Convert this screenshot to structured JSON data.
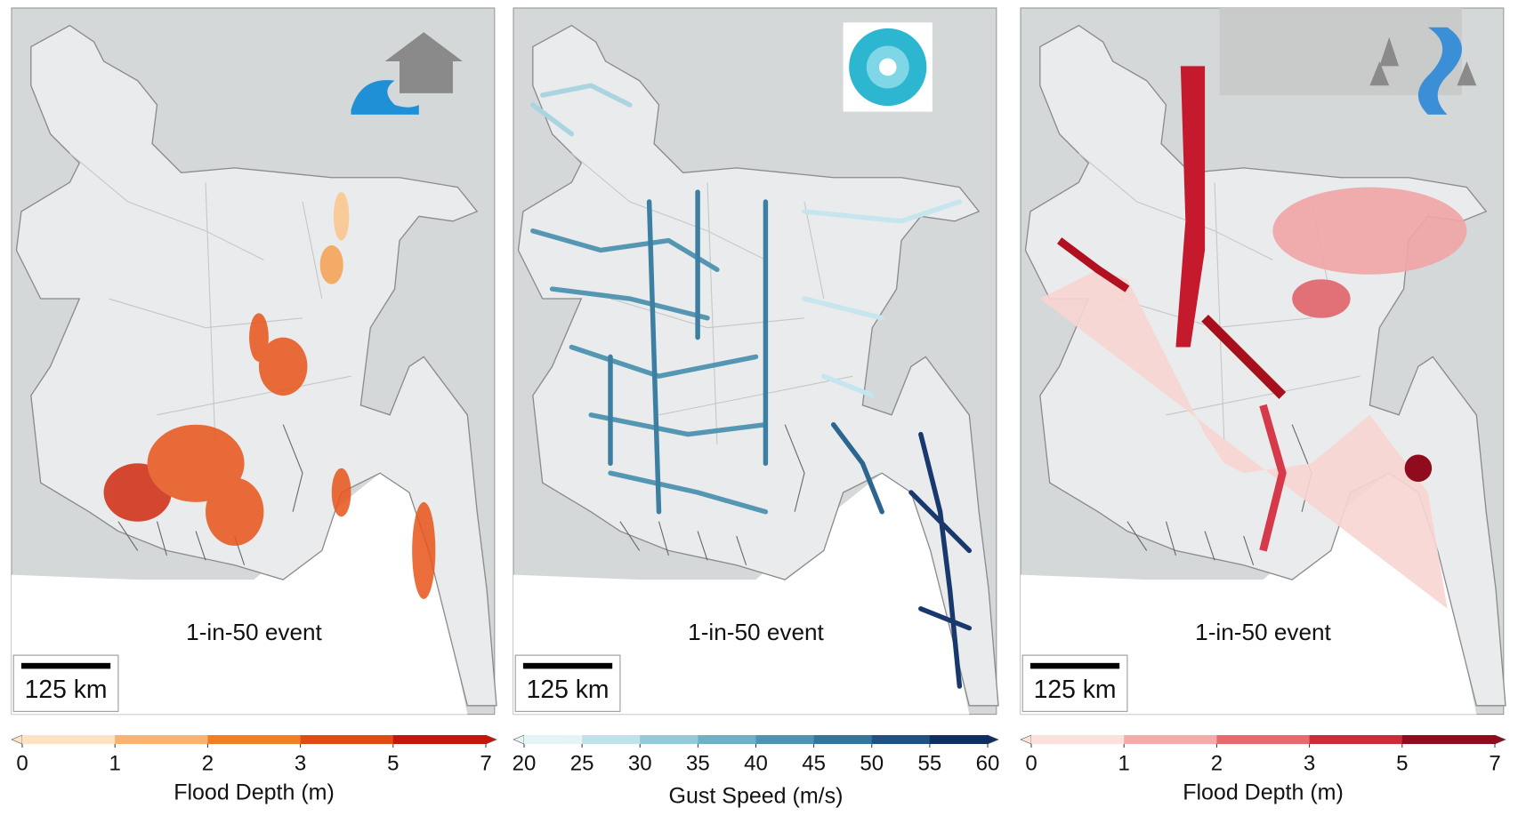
{
  "panels": [
    {
      "event": "1-in-50 event",
      "scale": "125 km",
      "colorbar": {
        "label": "Flood Depth (m)",
        "ticks": [
          0,
          1,
          2,
          3,
          5,
          7
        ],
        "colors": [
          "#fde3c4",
          "#f9b26f",
          "#f07f23",
          "#e04b14",
          "#c4160a"
        ]
      }
    },
    {
      "event": "1-in-50 event",
      "scale": "125 km",
      "colorbar": {
        "label": "Gust Speed (m/s)",
        "ticks": [
          20,
          25,
          30,
          35,
          40,
          45,
          50,
          55,
          60
        ],
        "colors": [
          "#e3f3f6",
          "#bfe2ea",
          "#94c9d7",
          "#6eb0c6",
          "#4d94b1",
          "#33759b",
          "#1f5283",
          "#0f2f63"
        ]
      }
    },
    {
      "event": "1-in-50 event",
      "scale": "125 km",
      "colorbar": {
        "label": "Flood Depth (m)",
        "ticks": [
          0,
          1,
          2,
          3,
          5,
          7
        ],
        "colors": [
          "#fbe0dc",
          "#f4aaa9",
          "#e8686f",
          "#cc2b3a",
          "#8f0b1d"
        ]
      }
    }
  ]
}
